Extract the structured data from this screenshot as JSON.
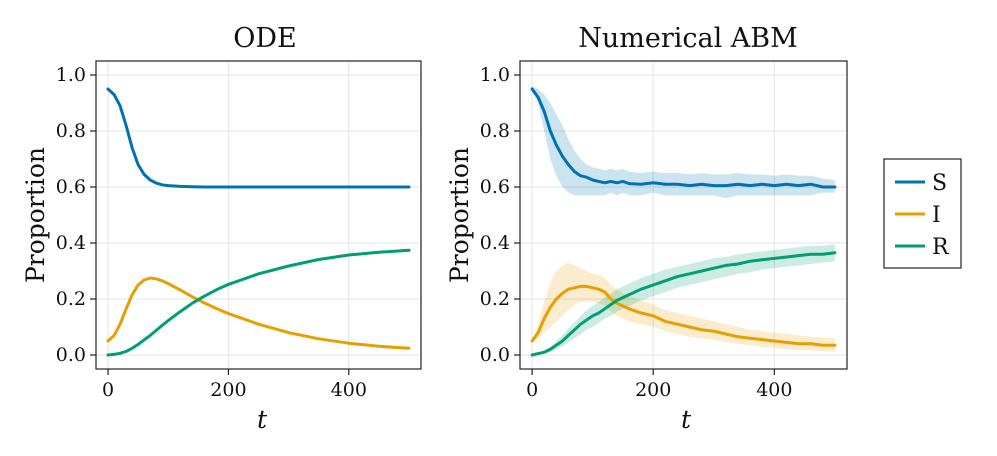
{
  "colors": {
    "S": "#0072b2",
    "I": "#e69f00",
    "R": "#009e73"
  },
  "legend": [
    {
      "key": "S",
      "label": "S"
    },
    {
      "key": "I",
      "label": "I"
    },
    {
      "key": "R",
      "label": "R"
    }
  ],
  "chart_data": [
    {
      "type": "line",
      "title": "ODE",
      "xlabel": "t",
      "ylabel": "Proportion",
      "xlim": [
        -20,
        520
      ],
      "ylim": [
        -0.05,
        1.05
      ],
      "xticks": [
        0,
        200,
        400
      ],
      "yticks": [
        0.0,
        0.2,
        0.4,
        0.6,
        0.8,
        1.0
      ],
      "grid": true,
      "x": [
        0,
        10,
        20,
        30,
        40,
        50,
        60,
        70,
        80,
        90,
        100,
        120,
        140,
        160,
        180,
        200,
        250,
        300,
        350,
        400,
        450,
        500
      ],
      "series": [
        {
          "key": "S",
          "name": "S",
          "values": [
            0.95,
            0.93,
            0.89,
            0.82,
            0.74,
            0.68,
            0.645,
            0.625,
            0.614,
            0.608,
            0.605,
            0.602,
            0.601,
            0.6,
            0.6,
            0.6,
            0.6,
            0.6,
            0.6,
            0.6,
            0.6,
            0.6
          ]
        },
        {
          "key": "I",
          "name": "I",
          "values": [
            0.05,
            0.07,
            0.11,
            0.165,
            0.215,
            0.25,
            0.268,
            0.275,
            0.272,
            0.265,
            0.255,
            0.232,
            0.208,
            0.186,
            0.166,
            0.148,
            0.11,
            0.08,
            0.058,
            0.042,
            0.031,
            0.024
          ]
        },
        {
          "key": "R",
          "name": "R",
          "values": [
            0.0,
            0.002,
            0.006,
            0.013,
            0.024,
            0.038,
            0.054,
            0.07,
            0.088,
            0.106,
            0.123,
            0.155,
            0.185,
            0.21,
            0.233,
            0.252,
            0.29,
            0.318,
            0.341,
            0.357,
            0.367,
            0.374
          ]
        }
      ]
    },
    {
      "type": "line",
      "title": "Numerical ABM",
      "xlabel": "t",
      "ylabel": "Proportion",
      "xlim": [
        -20,
        520
      ],
      "ylim": [
        -0.05,
        1.05
      ],
      "xticks": [
        0,
        200,
        400
      ],
      "yticks": [
        0.0,
        0.2,
        0.4,
        0.6,
        0.8,
        1.0
      ],
      "grid": true,
      "bands": true,
      "x": [
        0,
        10,
        20,
        30,
        40,
        50,
        60,
        70,
        80,
        90,
        100,
        110,
        120,
        130,
        140,
        150,
        160,
        180,
        200,
        220,
        240,
        260,
        280,
        300,
        320,
        340,
        360,
        380,
        400,
        420,
        440,
        460,
        480,
        500
      ],
      "series": [
        {
          "key": "S",
          "name": "S",
          "values": [
            0.95,
            0.92,
            0.87,
            0.8,
            0.75,
            0.71,
            0.68,
            0.655,
            0.64,
            0.635,
            0.625,
            0.62,
            0.615,
            0.62,
            0.615,
            0.62,
            0.612,
            0.61,
            0.615,
            0.61,
            0.61,
            0.605,
            0.61,
            0.605,
            0.605,
            0.61,
            0.605,
            0.61,
            0.605,
            0.61,
            0.605,
            0.61,
            0.6,
            0.6
          ],
          "lower": [
            0.94,
            0.9,
            0.8,
            0.7,
            0.64,
            0.6,
            0.58,
            0.57,
            0.57,
            0.57,
            0.57,
            0.57,
            0.57,
            0.58,
            0.57,
            0.58,
            0.57,
            0.57,
            0.58,
            0.57,
            0.57,
            0.57,
            0.57,
            0.57,
            0.56,
            0.57,
            0.57,
            0.57,
            0.57,
            0.57,
            0.57,
            0.57,
            0.58,
            0.58
          ],
          "upper": [
            0.96,
            0.95,
            0.93,
            0.9,
            0.86,
            0.82,
            0.77,
            0.73,
            0.7,
            0.68,
            0.67,
            0.665,
            0.66,
            0.665,
            0.66,
            0.665,
            0.655,
            0.65,
            0.655,
            0.65,
            0.65,
            0.645,
            0.65,
            0.645,
            0.645,
            0.65,
            0.645,
            0.645,
            0.64,
            0.645,
            0.64,
            0.64,
            0.63,
            0.625
          ]
        },
        {
          "key": "I",
          "name": "I",
          "values": [
            0.05,
            0.08,
            0.13,
            0.17,
            0.2,
            0.22,
            0.235,
            0.24,
            0.245,
            0.245,
            0.24,
            0.235,
            0.225,
            0.2,
            0.185,
            0.175,
            0.165,
            0.15,
            0.14,
            0.12,
            0.11,
            0.1,
            0.09,
            0.085,
            0.075,
            0.065,
            0.06,
            0.055,
            0.05,
            0.045,
            0.04,
            0.04,
            0.035,
            0.035
          ],
          "lower": [
            0.045,
            0.06,
            0.08,
            0.1,
            0.12,
            0.14,
            0.16,
            0.18,
            0.19,
            0.19,
            0.19,
            0.185,
            0.175,
            0.155,
            0.14,
            0.13,
            0.12,
            0.11,
            0.1,
            0.085,
            0.075,
            0.065,
            0.06,
            0.055,
            0.045,
            0.04,
            0.035,
            0.03,
            0.025,
            0.02,
            0.018,
            0.016,
            0.014,
            0.012
          ],
          "upper": [
            0.055,
            0.11,
            0.19,
            0.26,
            0.3,
            0.32,
            0.33,
            0.32,
            0.31,
            0.3,
            0.29,
            0.285,
            0.275,
            0.25,
            0.235,
            0.22,
            0.21,
            0.195,
            0.18,
            0.16,
            0.15,
            0.14,
            0.13,
            0.12,
            0.11,
            0.1,
            0.09,
            0.085,
            0.08,
            0.075,
            0.07,
            0.065,
            0.062,
            0.06
          ]
        },
        {
          "key": "R",
          "name": "R",
          "values": [
            0.0,
            0.005,
            0.01,
            0.02,
            0.035,
            0.05,
            0.07,
            0.09,
            0.11,
            0.125,
            0.14,
            0.15,
            0.165,
            0.18,
            0.195,
            0.205,
            0.215,
            0.235,
            0.25,
            0.265,
            0.28,
            0.29,
            0.3,
            0.31,
            0.32,
            0.325,
            0.335,
            0.34,
            0.345,
            0.35,
            0.355,
            0.36,
            0.36,
            0.365
          ],
          "lower": [
            0.0,
            0.003,
            0.006,
            0.012,
            0.02,
            0.03,
            0.045,
            0.06,
            0.075,
            0.09,
            0.1,
            0.115,
            0.13,
            0.14,
            0.155,
            0.165,
            0.175,
            0.195,
            0.21,
            0.225,
            0.24,
            0.25,
            0.26,
            0.27,
            0.28,
            0.29,
            0.295,
            0.305,
            0.31,
            0.315,
            0.32,
            0.325,
            0.33,
            0.335
          ],
          "upper": [
            0.0,
            0.008,
            0.016,
            0.03,
            0.05,
            0.07,
            0.095,
            0.115,
            0.14,
            0.16,
            0.175,
            0.19,
            0.205,
            0.22,
            0.235,
            0.245,
            0.255,
            0.275,
            0.29,
            0.305,
            0.315,
            0.325,
            0.335,
            0.345,
            0.35,
            0.36,
            0.365,
            0.37,
            0.375,
            0.38,
            0.385,
            0.39,
            0.39,
            0.395
          ]
        }
      ]
    }
  ]
}
